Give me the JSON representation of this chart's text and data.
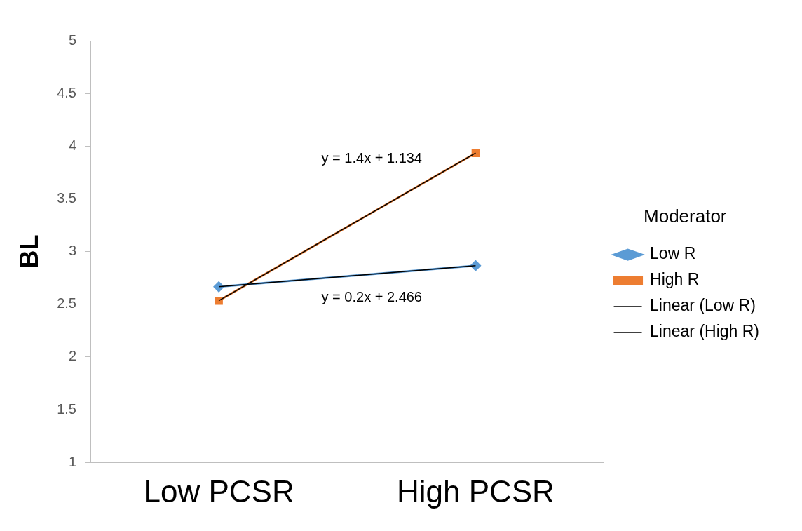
{
  "chart_data": {
    "type": "line",
    "ylabel": "BL",
    "legend_title": "Moderator",
    "categories": [
      "Low PCSR",
      "High PCSR"
    ],
    "series": [
      {
        "name": "Low R",
        "color": "#5b9bd5",
        "values": [
          2.666,
          2.866
        ],
        "marker": "diamond"
      },
      {
        "name": "High R",
        "color": "#ed7d31",
        "values": [
          2.534,
          3.934
        ],
        "marker": "square"
      },
      {
        "name": "Linear (Low R)",
        "type": "line",
        "color": "#000000",
        "values": [
          2.666,
          2.866
        ],
        "marker": "none"
      },
      {
        "name": "Linear (High R)",
        "type": "line",
        "color": "#000000",
        "values": [
          2.534,
          3.934
        ],
        "marker": "none"
      }
    ],
    "annotations": [
      "y = 1.4x + 1.134",
      "y = 0.2x + 2.466"
    ],
    "ylim": [
      1,
      5
    ],
    "yticks": [
      1,
      1.5,
      2,
      2.5,
      3,
      3.5,
      4,
      4.5,
      5
    ],
    "grid": false,
    "legend": "right",
    "line_style": "solid"
  }
}
